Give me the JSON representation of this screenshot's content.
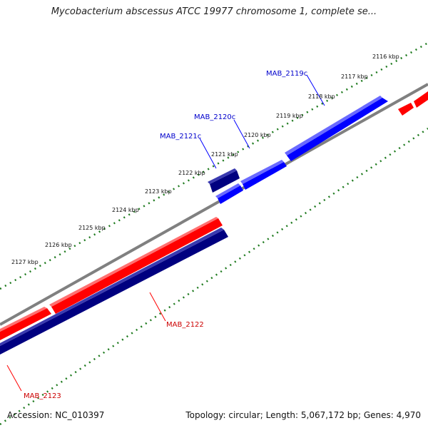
{
  "header": {
    "title": "Mycobacterium abscessus ATCC 19977 chromosome 1, complete se..."
  },
  "footer": {
    "accession": "Accession: NC_010397",
    "summary": "Topology: circular; Length: 5,067,172 bp; Genes: 4,970"
  },
  "ruler": {
    "ticks": [
      "2116 kbp",
      "2117 kbp",
      "2118 kbp",
      "2119 kbp",
      "2120 kbp",
      "2121 kbp",
      "2122 kbp",
      "2123 kbp",
      "2124 kbp",
      "2125 kbp",
      "2126 kbp",
      "2127 kbp"
    ]
  },
  "genes": {
    "labels": [
      "MAB_2119c",
      "MAB_2120c",
      "MAB_2121c",
      "MAB_2122",
      "MAB_2123"
    ]
  },
  "colors": {
    "forward": "#ff0000",
    "reverse": "#0000ff",
    "selected": "#000080",
    "backbone": "#808080",
    "ruler": "#1e7a1e"
  }
}
